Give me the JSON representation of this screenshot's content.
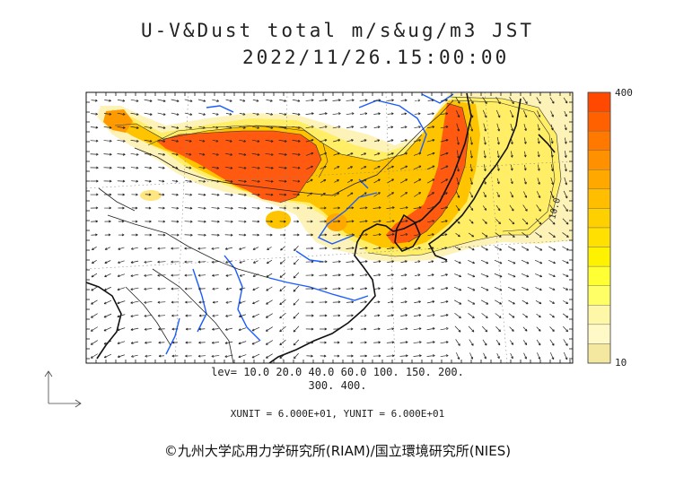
{
  "title": {
    "line1": "U-V&Dust total m/s&ug/m3 JST",
    "line2": "2022/11/26.15:00:00"
  },
  "colorbar": {
    "max_label": "400",
    "min_label": "10",
    "colors": [
      "#f4e8a0",
      "#fff9c8",
      "#fff7a8",
      "#ffff66",
      "#ffff33",
      "#fff200",
      "#ffe000",
      "#ffd000",
      "#ffbf00",
      "#ffa800",
      "#ff9000",
      "#ff7800",
      "#ff6000",
      "#ff4800"
    ]
  },
  "contour_levels": {
    "line1": "lev= 10.0 20.0 40.0 60.0 100. 150. 200.",
    "line2": "300. 400."
  },
  "contour_label": "10.0",
  "units_text": "XUNIT = 6.000E+01, YUNIT = 6.000E+01",
  "copyright": "©九州大学応用力学研究所(RIAM)/国立環境研究所(NIES)"
}
